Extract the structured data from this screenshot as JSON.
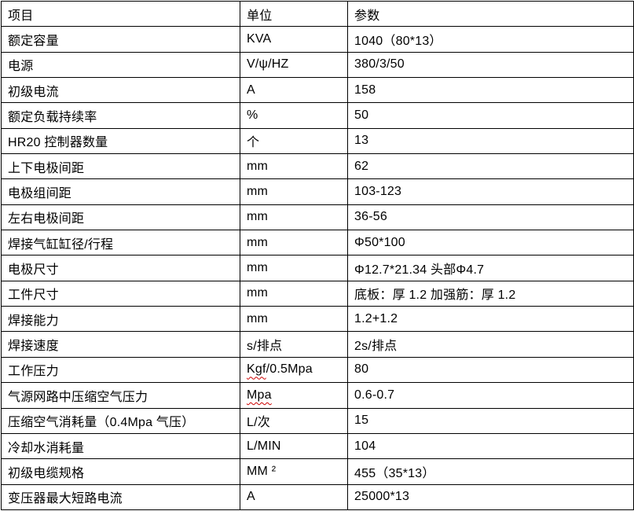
{
  "table": {
    "columns": [
      {
        "label": "项目"
      },
      {
        "label": "单位"
      },
      {
        "label": "参数"
      }
    ],
    "rows": [
      {
        "item": "额定容量",
        "unit": "KVA",
        "value": "1040（80*13）"
      },
      {
        "item": "电源",
        "unit": "V/ψ/HZ",
        "value": "380/3/50"
      },
      {
        "item": "初级电流",
        "unit": "A",
        "value": "158"
      },
      {
        "item": "额定负载持续率",
        "unit": "%",
        "value": "50"
      },
      {
        "item": "HR20 控制器数量",
        "unit": "个",
        "value": "13"
      },
      {
        "item": "上下电极间距",
        "unit": "mm",
        "value": "62"
      },
      {
        "item": "电极组间距",
        "unit": "mm",
        "value": "103-123"
      },
      {
        "item": "左右电极间距",
        "unit": "mm",
        "value": "36-56"
      },
      {
        "item": "焊接气缸缸径/行程",
        "unit": "mm",
        "value": "Φ50*100"
      },
      {
        "item": "电极尺寸",
        "unit": "mm",
        "value": "Φ12.7*21.34 头部Φ4.7"
      },
      {
        "item": "工件尺寸",
        "unit": "mm",
        "value": "底板：厚 1.2 加强筋：厚 1.2"
      },
      {
        "item": "焊接能力",
        "unit": "mm",
        "value": "1.2+1.2"
      },
      {
        "item": "焊接速度",
        "unit": "s/排点",
        "value": "2s/排点"
      },
      {
        "item": "工作压力",
        "unit": "Kgf/0.5Mpa",
        "unit_misspelled": "Kgf",
        "value": "80"
      },
      {
        "item": "气源网路中压缩空气压力",
        "unit": "Mpa",
        "unit_misspelled": "Mpa",
        "value": "0.6-0.7"
      },
      {
        "item": "压缩空气消耗量（0.4Mpa 气压）",
        "unit": "L/次",
        "value": "15"
      },
      {
        "item": "冷却水消耗量",
        "unit": "L/MIN",
        "value": "104"
      },
      {
        "item": "初级电缆规格",
        "unit": "MM ²",
        "value": "455（35*13）"
      },
      {
        "item": "变压器最大短路电流",
        "unit": "A",
        "value": "25000*13"
      }
    ],
    "spellcheck_color": "#cc0000",
    "border_color": "#000000"
  }
}
